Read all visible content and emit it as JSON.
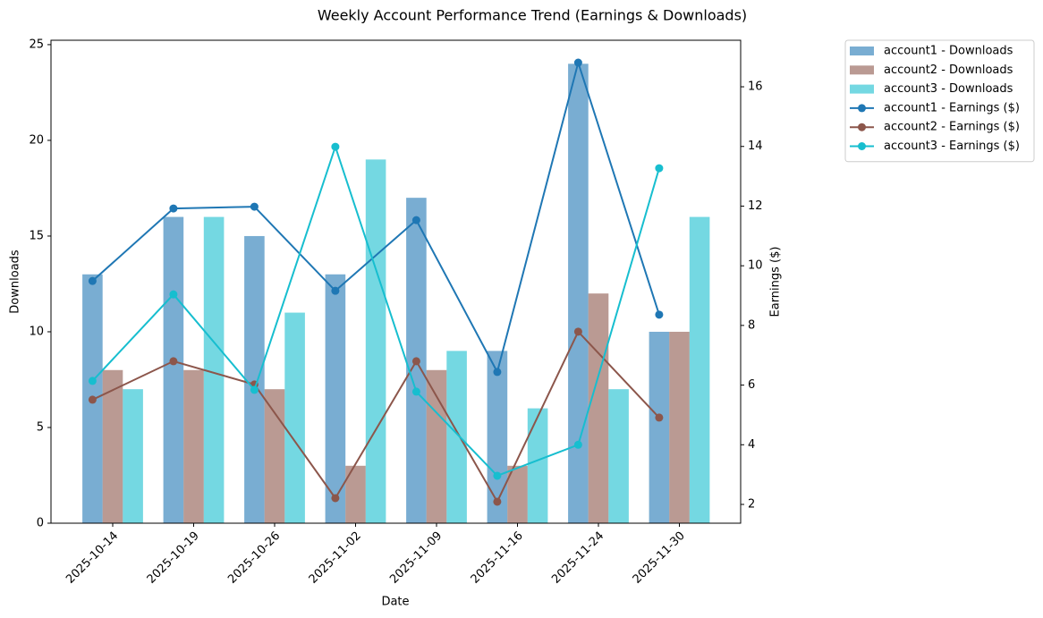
{
  "chart_data": {
    "type": "bar",
    "title": "Weekly Account Performance Trend (Earnings & Downloads)",
    "x_label": "Date",
    "y_label": "Downloads",
    "y2_label": "Earnings ($)",
    "categories": [
      "2025-10-14",
      "2025-10-19",
      "2025-10-26",
      "2025-11-02",
      "2025-11-09",
      "2025-11-16",
      "2025-11-24",
      "2025-11-30"
    ],
    "series": [
      {
        "name": "account1 - Downloads",
        "type": "bar",
        "color": "#1f77b4",
        "values": [
          13,
          16,
          15,
          13,
          17,
          9,
          24,
          10
        ]
      },
      {
        "name": "account2 - Downloads",
        "type": "bar",
        "color": "#8c564b",
        "values": [
          8,
          8,
          7,
          3,
          8,
          3,
          12,
          10
        ]
      },
      {
        "name": "account3 - Downloads",
        "type": "bar",
        "color": "#17becf",
        "values": [
          7,
          16,
          11,
          19,
          9,
          6,
          7,
          16
        ]
      },
      {
        "name": "account1 - Earnings ($)",
        "type": "line",
        "axis": "y2",
        "color": "#1f77b4",
        "values": [
          9.49,
          11.92,
          11.98,
          9.16,
          11.53,
          6.44,
          16.81,
          8.36
        ]
      },
      {
        "name": "account2 - Earnings ($)",
        "type": "line",
        "axis": "y2",
        "color": "#8c564b",
        "values": [
          5.51,
          6.8,
          6.02,
          2.21,
          6.8,
          2.09,
          7.79,
          4.91
        ]
      },
      {
        "name": "account3 - Earnings ($)",
        "type": "line",
        "axis": "y2",
        "color": "#17becf",
        "values": [
          6.14,
          9.04,
          5.84,
          13.99,
          5.78,
          2.96,
          4.0,
          13.27
        ]
      }
    ],
    "ylim": [
      0,
      25.23
    ],
    "yticks": [
      0,
      5,
      10,
      15,
      20,
      25
    ],
    "y2lim": [
      1.37,
      17.56
    ],
    "y2ticks": [
      2,
      4,
      6,
      8,
      10,
      12,
      14,
      16
    ],
    "grid": false,
    "legend": "outside upper right"
  }
}
